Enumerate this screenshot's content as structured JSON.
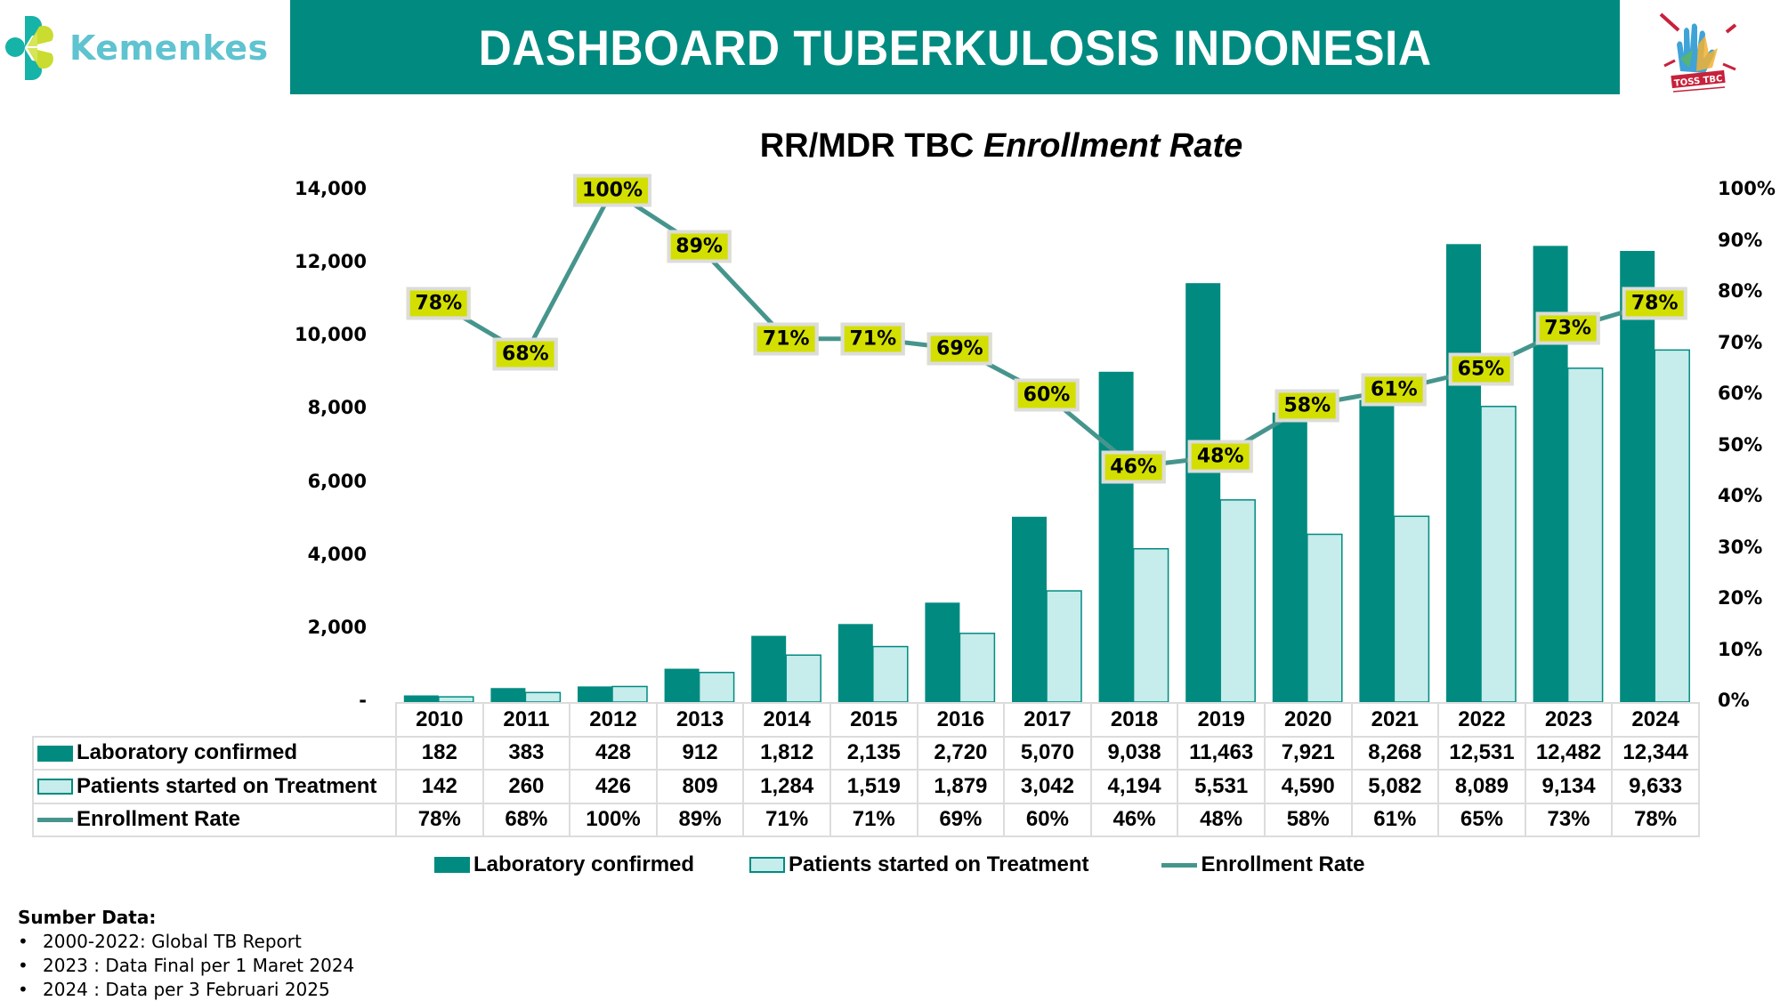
{
  "header": {
    "logo_text": "Kemenkes",
    "banner_title": "DASHBOARD TUBERKULOSIS INDONESIA",
    "right_logo_label": "TOSS TBC"
  },
  "chart_title": {
    "regular": "RR/MDR TBC ",
    "italic": "Enrollment Rate"
  },
  "axes": {
    "left_ticks": [
      "14,000",
      "12,000",
      "10,000",
      "8,000",
      "6,000",
      "4,000",
      "2,000",
      "-"
    ],
    "right_ticks": [
      "100%",
      "90%",
      "80%",
      "70%",
      "60%",
      "50%",
      "40%",
      "30%",
      "20%",
      "10%",
      "0%"
    ]
  },
  "table": {
    "years": [
      "2010",
      "2011",
      "2012",
      "2013",
      "2014",
      "2015",
      "2016",
      "2017",
      "2018",
      "2019",
      "2020",
      "2021",
      "2022",
      "2023",
      "2024"
    ],
    "rows": [
      {
        "label": "Laboratory confirmed",
        "values": [
          "182",
          "383",
          "428",
          "912",
          "1,812",
          "2,135",
          "2,720",
          "5,070",
          "9,038",
          "11,463",
          "7,921",
          "8,268",
          "12,531",
          "12,482",
          "12,344"
        ]
      },
      {
        "label": "Patients started on Treatment",
        "values": [
          "142",
          "260",
          "426",
          "809",
          "1,284",
          "1,519",
          "1,879",
          "3,042",
          "4,194",
          "5,531",
          "4,590",
          "5,082",
          "8,089",
          "9,134",
          "9,633"
        ]
      },
      {
        "label": "Enrollment Rate",
        "values": [
          "78%",
          "68%",
          "100%",
          "89%",
          "71%",
          "71%",
          "69%",
          "60%",
          "46%",
          "48%",
          "58%",
          "61%",
          "65%",
          "73%",
          "78%"
        ]
      }
    ]
  },
  "legend": {
    "items": [
      "Laboratory confirmed",
      "Patients started on Treatment",
      "Enrollment Rate"
    ]
  },
  "sources": {
    "title": "Sumber Data:",
    "items": [
      "2000-2022: Global TB Report",
      "2023 : Data Final per 1 Maret 2024",
      "2024 : Data per 3 Februari 2025"
    ]
  },
  "colors": {
    "banner": "#018b80",
    "lab_bar": "#018b80",
    "patient_bar": "#c6ecec",
    "rate_line": "#46958d",
    "callout_bg": "#d3df00",
    "logo_text": "#5fc3d0"
  },
  "chart_data": {
    "type": "bar",
    "title": "RR/MDR TBC Enrollment Rate",
    "categories": [
      "2010",
      "2011",
      "2012",
      "2013",
      "2014",
      "2015",
      "2016",
      "2017",
      "2018",
      "2019",
      "2020",
      "2021",
      "2022",
      "2023",
      "2024"
    ],
    "series": [
      {
        "name": "Laboratory confirmed",
        "type": "bar",
        "axis": "left",
        "values": [
          182,
          383,
          428,
          912,
          1812,
          2135,
          2720,
          5070,
          9038,
          11463,
          7921,
          8268,
          12531,
          12482,
          12344
        ]
      },
      {
        "name": "Patients started on Treatment",
        "type": "bar",
        "axis": "left",
        "values": [
          142,
          260,
          426,
          809,
          1284,
          1519,
          1879,
          3042,
          4194,
          5531,
          4590,
          5082,
          8089,
          9134,
          9633
        ]
      },
      {
        "name": "Enrollment Rate",
        "type": "line",
        "axis": "right",
        "unit": "%",
        "values": [
          78,
          68,
          100,
          89,
          71,
          71,
          69,
          60,
          46,
          48,
          58,
          61,
          65,
          73,
          78
        ]
      }
    ],
    "xlabel": "",
    "ylabel": "",
    "ylim": [
      0,
      14000
    ],
    "y2lim": [
      0,
      100
    ],
    "left_tick_step": 2000,
    "right_tick_step": 10,
    "grid": false,
    "legend_position": "bottom",
    "data_table": true
  }
}
